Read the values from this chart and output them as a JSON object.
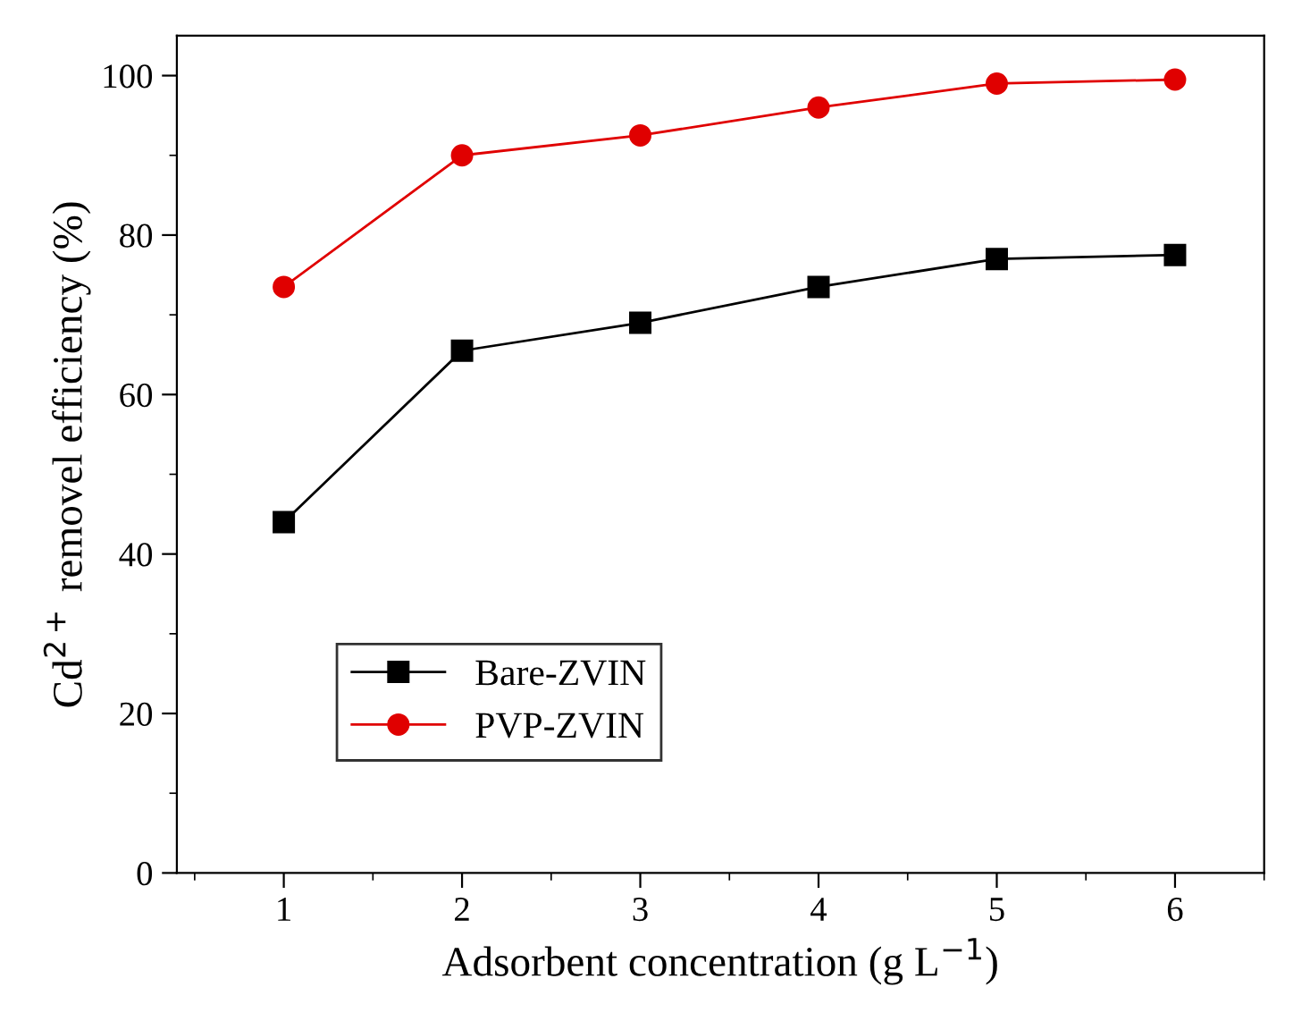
{
  "chart_data": {
    "type": "line",
    "xlabel": "Adsorbent concentration (g L$^{−1}$)",
    "ylabel": "Cd$^{2+}$ removel efficiency (%)",
    "x": [
      1,
      2,
      3,
      4,
      5,
      6
    ],
    "xlim": [
      0.4,
      6.5
    ],
    "xticks": [
      1,
      2,
      3,
      4,
      5,
      6
    ],
    "ylim": [
      0,
      105
    ],
    "yticks": [
      0,
      20,
      40,
      60,
      80,
      100
    ],
    "series": [
      {
        "name": "Bare-ZVIN",
        "color": "#000000",
        "marker": "square",
        "values": [
          44,
          65.5,
          69,
          73.5,
          77,
          77.5
        ]
      },
      {
        "name": "PVP-ZVIN",
        "color": "#e00000",
        "marker": "circle",
        "values": [
          73.5,
          90,
          92.5,
          96,
          99,
          99.5
        ]
      }
    ],
    "legend": "bottom left",
    "grid": false
  }
}
